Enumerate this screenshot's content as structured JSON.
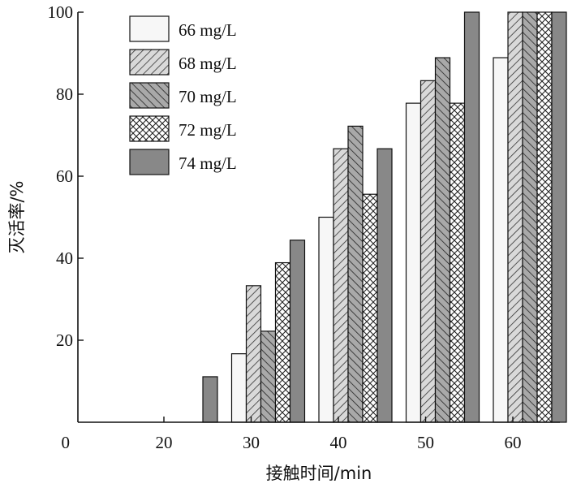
{
  "chart_data": {
    "type": "bar",
    "xlabel": "接触时间/min",
    "ylabel": "灭活率/%",
    "ylim": [
      0,
      100
    ],
    "yticks": [
      20,
      40,
      60,
      80,
      100
    ],
    "origin_label": "0",
    "categories": [
      "20",
      "30",
      "40",
      "50",
      "60"
    ],
    "series": [
      {
        "name": "66 mg/L",
        "values": [
          0,
          16.7,
          50.0,
          77.8,
          88.9
        ],
        "pattern": "white"
      },
      {
        "name": "68 mg/L",
        "values": [
          0,
          33.3,
          66.7,
          83.3,
          100
        ],
        "pattern": "hatch-forward"
      },
      {
        "name": "70 mg/L",
        "values": [
          0,
          22.2,
          72.2,
          88.9,
          100
        ],
        "pattern": "hatch-back"
      },
      {
        "name": "72 mg/L",
        "values": [
          0,
          38.9,
          55.6,
          77.8,
          100
        ],
        "pattern": "crosshatch"
      },
      {
        "name": "74 mg/L",
        "values": [
          11.1,
          44.4,
          66.7,
          100,
          100
        ],
        "pattern": "dark"
      }
    ],
    "grid": false,
    "legend_position": "top-left"
  }
}
